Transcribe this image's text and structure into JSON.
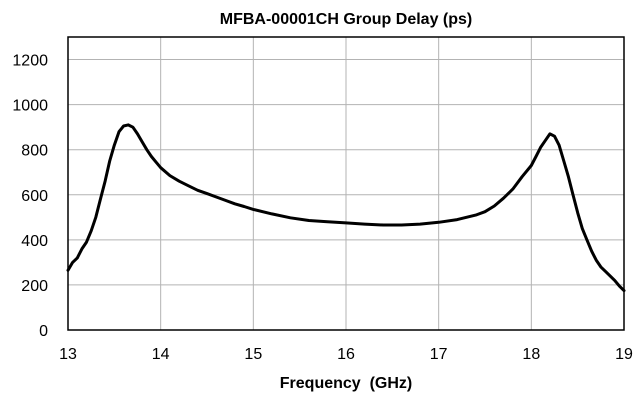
{
  "chart_data": {
    "type": "line",
    "title": "MFBA-00001CH Group Delay (ps)",
    "xlabel": "Frequency  (GHz)",
    "ylabel": "",
    "xlim": [
      13,
      19
    ],
    "ylim": [
      0,
      1300
    ],
    "xticks": [
      "13",
      "14",
      "15",
      "16",
      "17",
      "18",
      "19"
    ],
    "yticks": [
      "0",
      "200",
      "400",
      "600",
      "800",
      "1000",
      "1200"
    ],
    "grid": true,
    "legend": "none",
    "colors": {
      "line": "#000000",
      "grid": "#b3b3b3",
      "frame": "#000000"
    },
    "series": [
      {
        "x": [
          13.0,
          13.05,
          13.1,
          13.15,
          13.2,
          13.25,
          13.3,
          13.35,
          13.4,
          13.45,
          13.5,
          13.55,
          13.6,
          13.65,
          13.7,
          13.75,
          13.8,
          13.85,
          13.9,
          13.95,
          14.0,
          14.1,
          14.2,
          14.3,
          14.4,
          14.5,
          14.6,
          14.7,
          14.8,
          14.9,
          15.0,
          15.2,
          15.4,
          15.6,
          15.8,
          16.0,
          16.2,
          16.4,
          16.6,
          16.8,
          17.0,
          17.2,
          17.4,
          17.5,
          17.6,
          17.7,
          17.8,
          17.9,
          18.0,
          18.05,
          18.1,
          18.15,
          18.2,
          18.25,
          18.3,
          18.35,
          18.4,
          18.45,
          18.5,
          18.55,
          18.6,
          18.65,
          18.7,
          18.75,
          18.8,
          18.85,
          18.9,
          18.95,
          19.0
        ],
        "values": [
          265,
          300,
          320,
          360,
          390,
          440,
          500,
          580,
          660,
          750,
          820,
          880,
          905,
          910,
          900,
          870,
          835,
          800,
          770,
          745,
          720,
          685,
          660,
          640,
          620,
          605,
          590,
          575,
          560,
          548,
          535,
          515,
          498,
          486,
          480,
          475,
          470,
          466,
          466,
          470,
          478,
          490,
          510,
          525,
          550,
          585,
          625,
          680,
          730,
          770,
          810,
          840,
          870,
          860,
          820,
          750,
          680,
          600,
          520,
          450,
          400,
          350,
          310,
          280,
          260,
          240,
          220,
          195,
          175
        ]
      }
    ]
  }
}
